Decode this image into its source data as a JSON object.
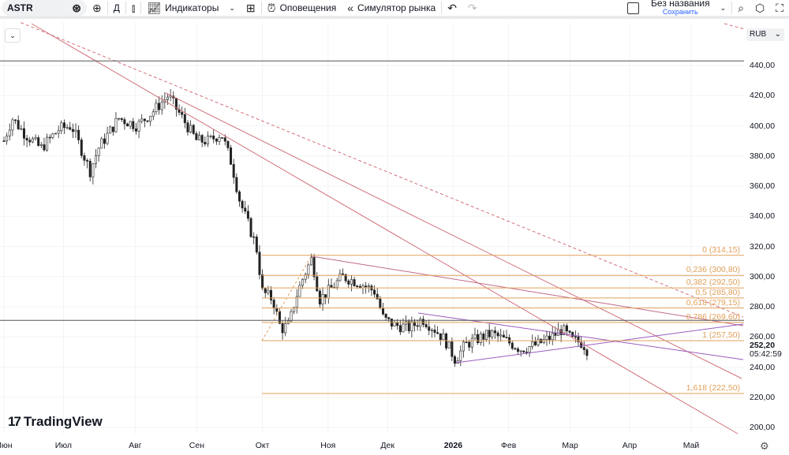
{
  "toolbar": {
    "symbol": "ASTR",
    "interval": "Д",
    "indicators": "Индикаторы",
    "alerts": "Оповещения",
    "replay": "Симулятор рынка",
    "layout_name": "Без названия",
    "save": "Сохранить"
  },
  "currency": "RUB",
  "logo": "TradingView",
  "chart_data": {
    "type": "candlestick",
    "y_ticks": [
      440,
      420,
      400,
      380,
      360,
      340,
      320,
      300,
      280,
      260,
      240,
      220,
      200
    ],
    "y_tick_labels": [
      "440,00",
      "420,00",
      "400,00",
      "380,00",
      "360,00",
      "340,00",
      "320,00",
      "300,00",
      "280,00",
      "260,00",
      "240,00",
      "220,00",
      "200,00"
    ],
    "ylim": [
      195,
      445
    ],
    "x_labels": [
      {
        "label": "Июн",
        "day": 0
      },
      {
        "label": "Июл",
        "day": 29
      },
      {
        "label": "Авг",
        "day": 64
      },
      {
        "label": "Сен",
        "day": 94
      },
      {
        "label": "Окт",
        "day": 126
      },
      {
        "label": "Ноя",
        "day": 158
      },
      {
        "label": "Дек",
        "day": 187
      },
      {
        "label": "2026",
        "day": 219
      },
      {
        "label": "Фев",
        "day": 246
      },
      {
        "label": "Мар",
        "day": 276
      },
      {
        "label": "Апр",
        "day": 305
      },
      {
        "label": "Май",
        "day": 335
      }
    ],
    "last_price": "252,20",
    "countdown": "05:42:59",
    "last_value": 252.2,
    "horizontal_levels": [
      443,
      271
    ],
    "fibonacci": [
      {
        "label": "0 (314,15)",
        "value": 314.15
      },
      {
        "label": "0,236 (300,80)",
        "value": 300.8
      },
      {
        "label": "0,382 (292,50)",
        "value": 292.5
      },
      {
        "label": "0,5 (285,80)",
        "value": 285.8
      },
      {
        "label": "0,618 (279,15)",
        "value": 279.15
      },
      {
        "label": "0,786 (269,60)",
        "value": 269.6
      },
      {
        "label": "1 (257,50)",
        "value": 257.5
      },
      {
        "label": "1,618 (222,50)",
        "value": 222.5
      }
    ],
    "price_path": [
      [
        0,
        390
      ],
      [
        4,
        405
      ],
      [
        10,
        395
      ],
      [
        18,
        385
      ],
      [
        27,
        398
      ],
      [
        33,
        400
      ],
      [
        39,
        380
      ],
      [
        42,
        370
      ],
      [
        46,
        385
      ],
      [
        56,
        405
      ],
      [
        65,
        400
      ],
      [
        73,
        410
      ],
      [
        80,
        420
      ],
      [
        87,
        405
      ],
      [
        94,
        390
      ],
      [
        100,
        390
      ],
      [
        106,
        395
      ],
      [
        111,
        375
      ],
      [
        115,
        350
      ],
      [
        119,
        335
      ],
      [
        123,
        320
      ],
      [
        126,
        290
      ],
      [
        131,
        285
      ],
      [
        135,
        265
      ],
      [
        139,
        268
      ],
      [
        142,
        285
      ],
      [
        146,
        300
      ],
      [
        150,
        312
      ],
      [
        154,
        285
      ],
      [
        158,
        290
      ],
      [
        165,
        300
      ],
      [
        173,
        296
      ],
      [
        181,
        290
      ],
      [
        185,
        272
      ],
      [
        190,
        268
      ],
      [
        198,
        266
      ],
      [
        204,
        272
      ],
      [
        210,
        265
      ],
      [
        215,
        258
      ],
      [
        220,
        245
      ],
      [
        225,
        255
      ],
      [
        233,
        260
      ],
      [
        238,
        262
      ],
      [
        244,
        258
      ],
      [
        252,
        252
      ],
      [
        260,
        255
      ],
      [
        267,
        260
      ],
      [
        272,
        265
      ],
      [
        277,
        258
      ],
      [
        282,
        256
      ],
      [
        285,
        250
      ]
    ]
  }
}
